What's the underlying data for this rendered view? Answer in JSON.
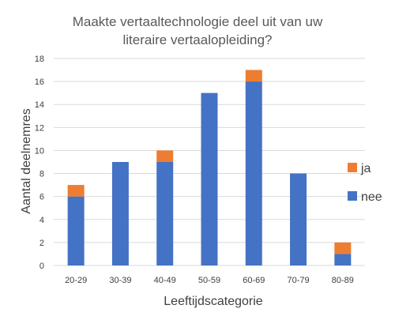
{
  "chart_data": {
    "type": "bar",
    "stacked": true,
    "title_lines": [
      "Maakte vertaaltechnologie deel uit van uw",
      "literaire vertaalopleiding?"
    ],
    "xlabel": "Leeftijdscategorie",
    "ylabel": "Aantal deelnemres",
    "categories": [
      "20-29",
      "30-39",
      "40-49",
      "50-59",
      "60-69",
      "70-79",
      "80-89"
    ],
    "series": [
      {
        "name": "nee",
        "color": "#4472C4",
        "values": [
          6,
          9,
          9,
          15,
          16,
          8,
          1
        ]
      },
      {
        "name": "ja",
        "color": "#ED7D31",
        "values": [
          1,
          0,
          1,
          0,
          1,
          0,
          1
        ]
      }
    ],
    "ylim": [
      0,
      18
    ],
    "yticks": [
      "0",
      "2",
      "4",
      "6",
      "8",
      "10",
      "12",
      "14",
      "16",
      "18"
    ],
    "grid": true,
    "legend": {
      "position": "right",
      "order": [
        "ja",
        "nee"
      ]
    }
  }
}
